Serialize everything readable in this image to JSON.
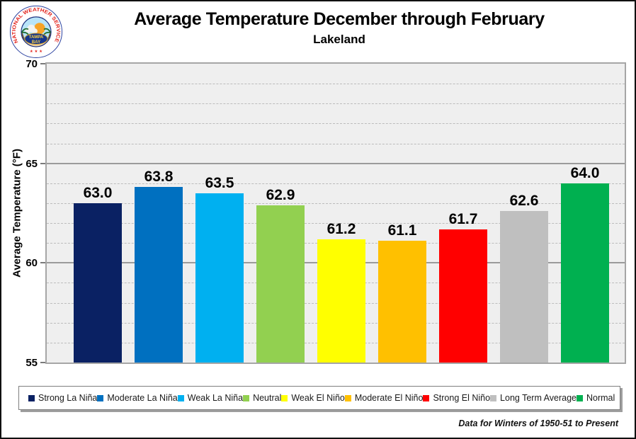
{
  "page": {
    "footer_note": "Data for Winters of 1950-51 to Present"
  },
  "logo": {
    "ring_text": "NATIONAL WEATHER SERVICE",
    "banner_top": "TAMPA",
    "banner_bottom": "BAY",
    "stars": "★ ★ ★"
  },
  "chart_data": {
    "type": "bar",
    "title": "Average Temperature December through February",
    "subtitle": "Lakeland",
    "xlabel": "",
    "ylabel": "Average Temperature (°F)",
    "ylim": [
      55,
      70
    ],
    "yticks": [
      55,
      60,
      65,
      70
    ],
    "minor_tick_unit": 1,
    "grid": {
      "major": "solid",
      "minor": "dashed"
    },
    "legend_position": "bottom",
    "plot_bg": "#efefef",
    "categories": [
      "Strong La Niña",
      "Moderate La Niña",
      "Weak La Niña",
      "Neutral",
      "Weak El Niño",
      "Moderate El Niño",
      "Strong El Niño",
      "Long Term Average",
      "Normal"
    ],
    "values": [
      63.0,
      63.8,
      63.5,
      62.9,
      61.2,
      61.1,
      61.7,
      62.6,
      64.0
    ],
    "labels": [
      "63.0",
      "63.8",
      "63.5",
      "62.9",
      "61.2",
      "61.1",
      "61.7",
      "62.6",
      "64.0"
    ],
    "colors": [
      "#0a2163",
      "#0070c0",
      "#00b0f0",
      "#92d050",
      "#ffff00",
      "#ffc000",
      "#ff0000",
      "#bfbfbf",
      "#00b050"
    ]
  }
}
